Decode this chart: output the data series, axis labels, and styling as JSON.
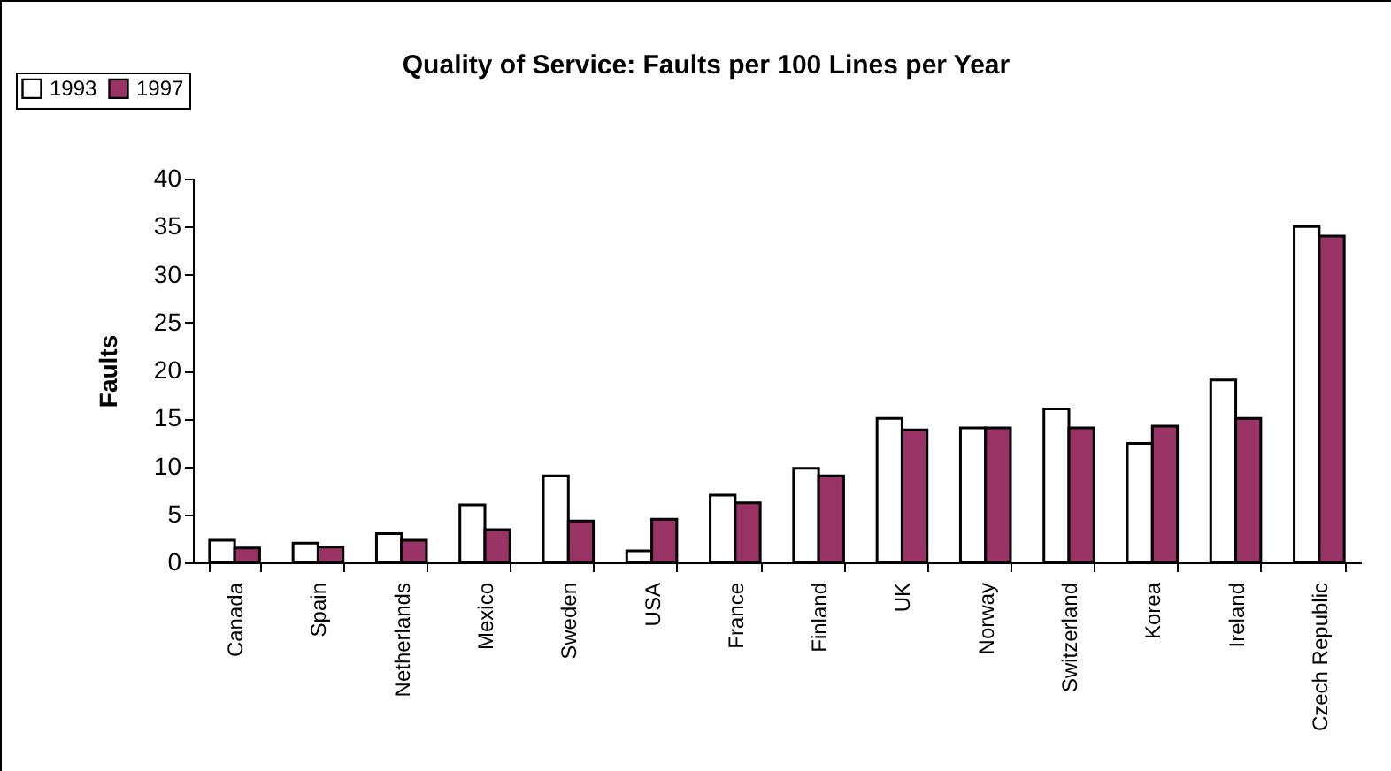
{
  "chart_data": {
    "type": "bar",
    "title": "Quality of Service: Faults per 100 Lines per Year",
    "ylabel": "Faults",
    "categories": [
      "Canada",
      "Spain",
      "Netherlands",
      "Mexico",
      "Sweden",
      "USA",
      "France",
      "Finland",
      "UK",
      "Norway",
      "Switzerland",
      "Korea",
      "Ireland",
      "Czech Republic"
    ],
    "series": [
      {
        "name": "1993",
        "color": "#ffffff",
        "values": [
          2.3,
          2.0,
          3.0,
          6.0,
          9.0,
          1.2,
          7.0,
          9.8,
          15.0,
          14.0,
          16.0,
          12.4,
          19.0,
          35.0
        ]
      },
      {
        "name": "1997",
        "color": "#993366",
        "values": [
          1.5,
          1.6,
          2.3,
          3.4,
          4.3,
          4.5,
          6.2,
          9.0,
          13.8,
          14.0,
          14.0,
          14.2,
          15.0,
          34.0
        ]
      }
    ],
    "ylim": [
      0,
      40
    ],
    "yticks": [
      0,
      5,
      10,
      15,
      20,
      25,
      30,
      35,
      40
    ],
    "grid": false,
    "legend": "top left"
  }
}
